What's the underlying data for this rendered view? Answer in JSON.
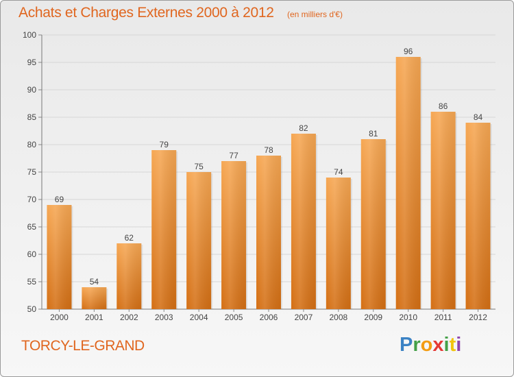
{
  "chart_data": {
    "type": "bar",
    "title": "Achats et Charges Externes 2000 à 2012",
    "subtitle": "(en milliers d'€)",
    "categories": [
      "2000",
      "2001",
      "2002",
      "2003",
      "2004",
      "2005",
      "2006",
      "2007",
      "2008",
      "2009",
      "2010",
      "2011",
      "2012"
    ],
    "values": [
      69,
      54,
      62,
      79,
      75,
      77,
      78,
      82,
      74,
      81,
      96,
      86,
      84
    ],
    "ylim": [
      50,
      100
    ],
    "yticks": [
      50,
      55,
      60,
      65,
      70,
      75,
      80,
      85,
      90,
      95,
      100
    ],
    "grid": true,
    "data_labels": true,
    "colors": {
      "bar_top": "#f6a753",
      "bar_bottom": "#d46f14",
      "text_accent": "#e0661f",
      "grid": "#d6d6d6"
    }
  },
  "footer": {
    "commune": "TORCY-LE-GRAND",
    "brand": "Proxiti"
  }
}
